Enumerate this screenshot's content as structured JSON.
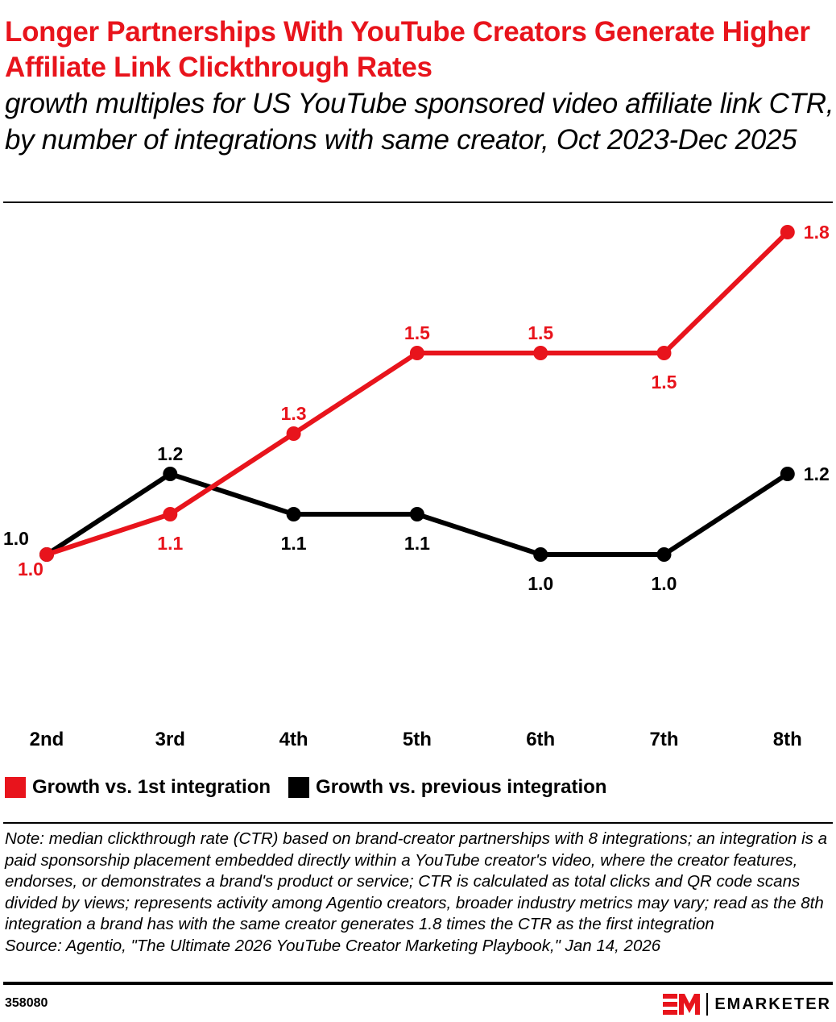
{
  "header": {
    "title": "Longer Partnerships With YouTube Creators Generate Higher Affiliate Link Clickthrough Rates",
    "subtitle": "growth multiples for US YouTube sponsored video affiliate link CTR, by number of integrations with same creator, Oct 2023-Dec 2025"
  },
  "chart_data": {
    "type": "line",
    "categories": [
      "2nd",
      "3rd",
      "4th",
      "5th",
      "6th",
      "7th",
      "8th"
    ],
    "series": [
      {
        "name": "Growth vs. 1st integration",
        "color": "#e8141c",
        "values": [
          1.0,
          1.1,
          1.3,
          1.5,
          1.5,
          1.5,
          1.8
        ]
      },
      {
        "name": "Growth vs. previous integration",
        "color": "#000000",
        "values": [
          1.0,
          1.2,
          1.1,
          1.1,
          1.0,
          1.0,
          1.2
        ]
      }
    ],
    "ylim": [
      0.6,
      2.0
    ],
    "grid": false,
    "legend_placement": "bottom-left"
  },
  "footer": {
    "note": "Note: median clickthrough rate (CTR) based on brand-creator partnerships with 8 integrations; an integration is a paid sponsorship placement embedded directly within a YouTube creator's video, where the creator features, endorses, or demonstrates a brand's product or service; CTR is calculated as total clicks and QR code scans divided by views; represents activity among Agentio creators, broader industry metrics may vary; read as the 8th integration a brand has with the same creator generates 1.8 times the CTR as the first integration",
    "source": "Source: Agentio, \"The Ultimate 2026 YouTube Creator Marketing Playbook,\" Jan 14, 2026",
    "chart_id": "358080",
    "brand": "EMARKETER"
  }
}
